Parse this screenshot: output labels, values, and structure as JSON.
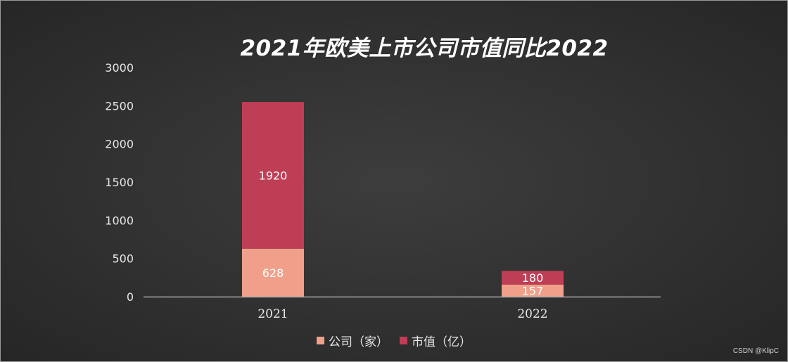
{
  "chart_data": {
    "type": "bar",
    "stacked": true,
    "title": "2021年欧美上市公司市值同比2022",
    "categories": [
      "2021",
      "2022"
    ],
    "series": [
      {
        "name": "公司（家）",
        "values": [
          628,
          157
        ],
        "color": "#f0a08a"
      },
      {
        "name": "市值（亿）",
        "values": [
          1920,
          180
        ],
        "color": "#be3f55"
      }
    ],
    "yticks": [
      "0",
      "500",
      "1000",
      "1500",
      "2000",
      "2500",
      "3000"
    ],
    "ylim": [
      0,
      3000
    ],
    "xlabel": "",
    "ylabel": "",
    "grid": false,
    "legend_position": "bottom"
  },
  "watermark": "CSDN @KlipC"
}
